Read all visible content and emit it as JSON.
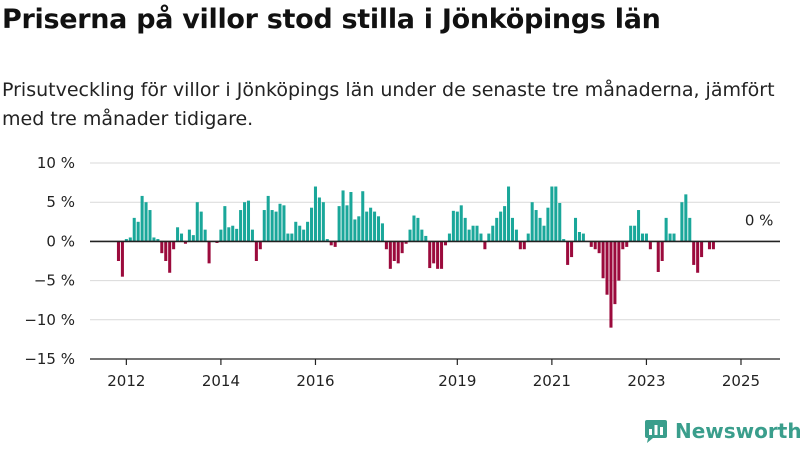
{
  "header": {
    "title": "Priserna på villor stod stilla i Jönköpings län",
    "subtitle": "Prisutveckling för villor i Jönköpings län under de senaste tre månaderna, jämfört med tre månader tidigare."
  },
  "brand": {
    "name": "Newsworthy",
    "icon": "newsworthy-logo-icon",
    "color": "#3a9e8c"
  },
  "colors": {
    "positive": "#1aa79a",
    "negative": "#9b0a3c",
    "grid": "#d9d9d9",
    "zero_line": "#222222"
  },
  "chart_data": {
    "type": "bar",
    "x_axis_type": "date",
    "x_start": "2011-11",
    "x_step": "month",
    "ylim": [
      -15,
      10
    ],
    "yticks": [
      10,
      5,
      0,
      -5,
      -10,
      -15
    ],
    "ytick_labels": [
      "10 %",
      "5 %",
      "0 %",
      "−5 %",
      "−10 %",
      "−15 %"
    ],
    "xtick_labels": [
      "2012",
      "2014",
      "2016",
      "2019",
      "2021",
      "2023",
      "2025"
    ],
    "xtick_positions": [
      "2012-01",
      "2014-01",
      "2016-01",
      "2019-01",
      "2021-01",
      "2023-01",
      "2025-01"
    ],
    "grid": true,
    "annotation": {
      "text": "0 %",
      "x": "2025-03",
      "y": 0
    },
    "values": [
      -2.5,
      -4.5,
      0.3,
      0.5,
      3.0,
      2.5,
      5.8,
      5.0,
      4.0,
      0.5,
      0.3,
      -1.5,
      -2.5,
      -4.0,
      -1.0,
      1.8,
      1.0,
      -0.3,
      1.5,
      0.8,
      5.0,
      3.8,
      1.5,
      -2.8,
      0.0,
      -0.2,
      1.5,
      4.5,
      1.8,
      2.0,
      1.6,
      4.0,
      5.0,
      5.2,
      1.5,
      -2.5,
      -1.0,
      4.0,
      5.8,
      4.0,
      3.8,
      4.8,
      4.6,
      1.0,
      1.0,
      2.5,
      2.0,
      1.5,
      2.5,
      4.3,
      7.0,
      5.6,
      5.0,
      0.3,
      -0.5,
      -0.7,
      4.5,
      6.5,
      4.6,
      6.3,
      2.8,
      3.2,
      6.4,
      3.8,
      4.3,
      3.8,
      3.2,
      2.3,
      -1.0,
      -3.5,
      -2.5,
      -2.8,
      -1.5,
      -0.3,
      1.5,
      3.3,
      3.0,
      1.5,
      0.7,
      -3.4,
      -2.8,
      -3.5,
      -3.5,
      -0.5,
      1.0,
      3.9,
      3.8,
      4.6,
      3.0,
      1.5,
      2.0,
      2.0,
      1.0,
      -1.0,
      1.0,
      2.0,
      3.0,
      3.8,
      4.5,
      7.0,
      3.0,
      1.5,
      -1.0,
      -1.0,
      1.0,
      5.0,
      4.0,
      3.0,
      2.0,
      4.3,
      7.0,
      7.0,
      4.9,
      0.3,
      -3.0,
      -2.0,
      3.0,
      1.2,
      1.0,
      0.0,
      -0.7,
      -1.0,
      -1.5,
      -4.7,
      -6.8,
      -11.0,
      -8.0,
      -5.0,
      -1.0,
      -0.7,
      2.0,
      2.0,
      4.0,
      1.0,
      1.0,
      -1.0,
      0.0,
      -3.9,
      -2.5,
      3.0,
      1.0,
      1.0,
      0.0,
      5.0,
      6.0,
      3.0,
      -3.0,
      -4.0,
      -2.0,
      0.0,
      -1.0,
      -1.0,
      0.0
    ]
  }
}
